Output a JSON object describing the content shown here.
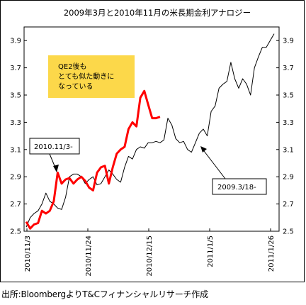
{
  "chart_data": {
    "type": "line",
    "title": "2009年3月と2010年11月の米長期金利アナロジー",
    "ylim": [
      2.5,
      4.0
    ],
    "y_ticks": [
      "3.9",
      "3.7",
      "3.5",
      "3.3",
      "3.1",
      "2.9",
      "2.7",
      "2.5"
    ],
    "x_tick_labels": [
      "2010/11/3",
      "2010/11/24",
      "2010/12/15",
      "2011/1/5",
      "2011/1/26"
    ],
    "grid": false,
    "right_axis_mirrors_left": true,
    "series": [
      {
        "color": "#000000",
        "values": [
          2.53,
          2.6,
          2.63,
          2.65,
          2.7,
          2.78,
          2.72,
          2.7,
          2.67,
          2.66,
          2.75,
          2.9,
          2.92,
          2.92,
          2.9,
          2.85,
          2.88,
          2.9,
          2.84,
          2.85,
          2.9,
          2.95,
          2.92,
          2.88,
          2.86,
          2.97,
          3.05,
          3.03,
          3.1,
          3.12,
          3.11,
          3.15,
          3.15,
          3.16,
          3.15,
          3.17,
          3.33,
          3.28,
          3.18,
          3.15,
          3.16,
          3.1,
          3.08,
          3.15,
          3.22,
          3.25,
          3.2,
          3.38,
          3.42,
          3.55,
          3.58,
          3.6,
          3.74,
          3.62,
          3.55,
          3.62,
          3.58,
          3.5,
          3.7,
          3.78,
          3.85,
          3.85,
          3.9,
          3.95
        ]
      },
      {
        "color": "#ff0000",
        "values": [
          2.57,
          2.52,
          2.55,
          2.56,
          2.65,
          2.63,
          2.65,
          2.72,
          2.93,
          2.85,
          2.88,
          2.89,
          2.85,
          2.88,
          2.9,
          2.87,
          2.82,
          2.8,
          2.93,
          2.97,
          2.98,
          2.85,
          2.97,
          3.07,
          3.1,
          3.12,
          3.25,
          3.3,
          3.27,
          3.48,
          3.53,
          3.43,
          3.33,
          3.33,
          3.34
        ]
      }
    ],
    "annotations": {
      "qe2_box": [
        "QE2後も",
        "とても似た動きに",
        "なっている"
      ],
      "callout_left": "2010.11/3-",
      "callout_right": "2009.3/18-"
    }
  },
  "source_note": "出所:BloombergよりT&Cフィナンシャルリサーチ作成",
  "colors": {
    "qe2_box": "#fcd84a",
    "red_series": "#ff0000",
    "black_series": "#000000"
  }
}
